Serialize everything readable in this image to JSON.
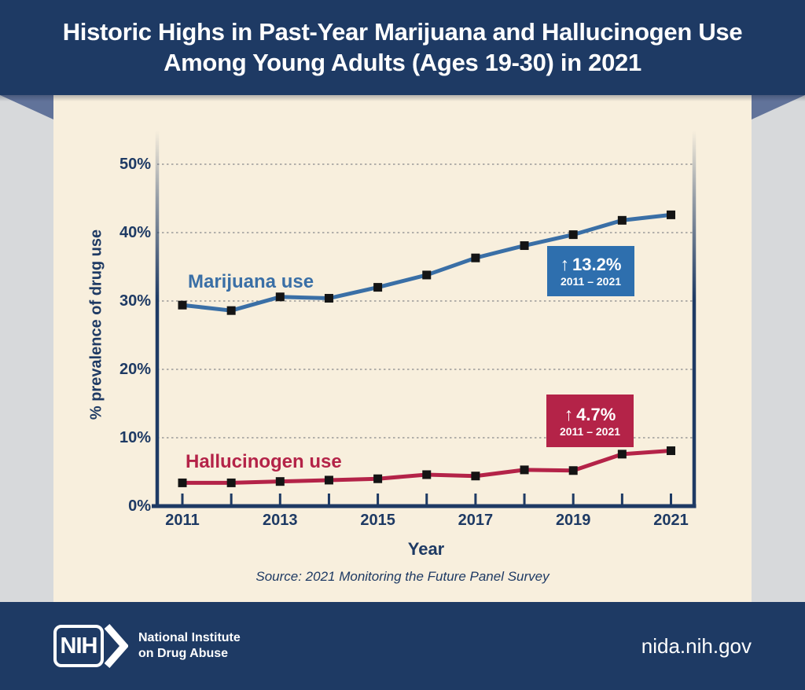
{
  "header": {
    "title_line1": "Historic Highs in Past-Year Marijuana and Hallucinogen Use",
    "title_line2": "Among Young Adults (Ages 19-30) in 2021"
  },
  "chart_data": {
    "type": "line",
    "title": "",
    "xlabel": "Year",
    "ylabel": "% prevalence of drug use",
    "x": [
      2011,
      2012,
      2013,
      2014,
      2015,
      2016,
      2017,
      2018,
      2019,
      2020,
      2021
    ],
    "xtick_labels": [
      "2011",
      "",
      "2013",
      "",
      "2015",
      "",
      "2017",
      "",
      "2019",
      "",
      "2021"
    ],
    "yticks": [
      0,
      10,
      20,
      30,
      40,
      50
    ],
    "ytick_labels": [
      "0%",
      "10%",
      "20%",
      "30%",
      "40%",
      "50%"
    ],
    "ylim": [
      0,
      55
    ],
    "grid": "horizontal-dashed",
    "legend_position": "inline-labels",
    "series": [
      {
        "name": "Marijuana use",
        "color": "#3A6FA6",
        "values": [
          29.4,
          28.6,
          30.6,
          30.4,
          32.0,
          33.8,
          36.3,
          38.1,
          39.7,
          41.8,
          42.6
        ]
      },
      {
        "name": "Hallucinogen use",
        "color": "#B42348",
        "values": [
          3.4,
          3.4,
          3.6,
          3.8,
          4.0,
          4.6,
          4.4,
          5.3,
          5.2,
          7.6,
          8.1
        ]
      }
    ],
    "annotations": [
      {
        "series": "Marijuana use",
        "arrow": "↑",
        "delta": "13.2%",
        "range": "2011 – 2021",
        "color": "#2E6FAE"
      },
      {
        "series": "Hallucinogen use",
        "arrow": "↑",
        "delta": "4.7%",
        "range": "2011 – 2021",
        "color": "#B42348"
      }
    ],
    "source": "Source: 2021 Monitoring the Future Panel Survey"
  },
  "footer": {
    "nih_acronym": "NIH",
    "org_line1": "National Institute",
    "org_line2": "on Drug Abuse",
    "website": "nida.nih.gov"
  },
  "colors": {
    "header_bg": "#1E3A64",
    "footer_bg": "#1E3A64",
    "card_bg": "#F8EFDD",
    "margin_bg": "#D7D9DB",
    "fold_accent": "#61739A",
    "axis": "#1E3A64",
    "gridline": "#9A9A9A",
    "marker": "#141414",
    "text": "#1E3A64"
  }
}
